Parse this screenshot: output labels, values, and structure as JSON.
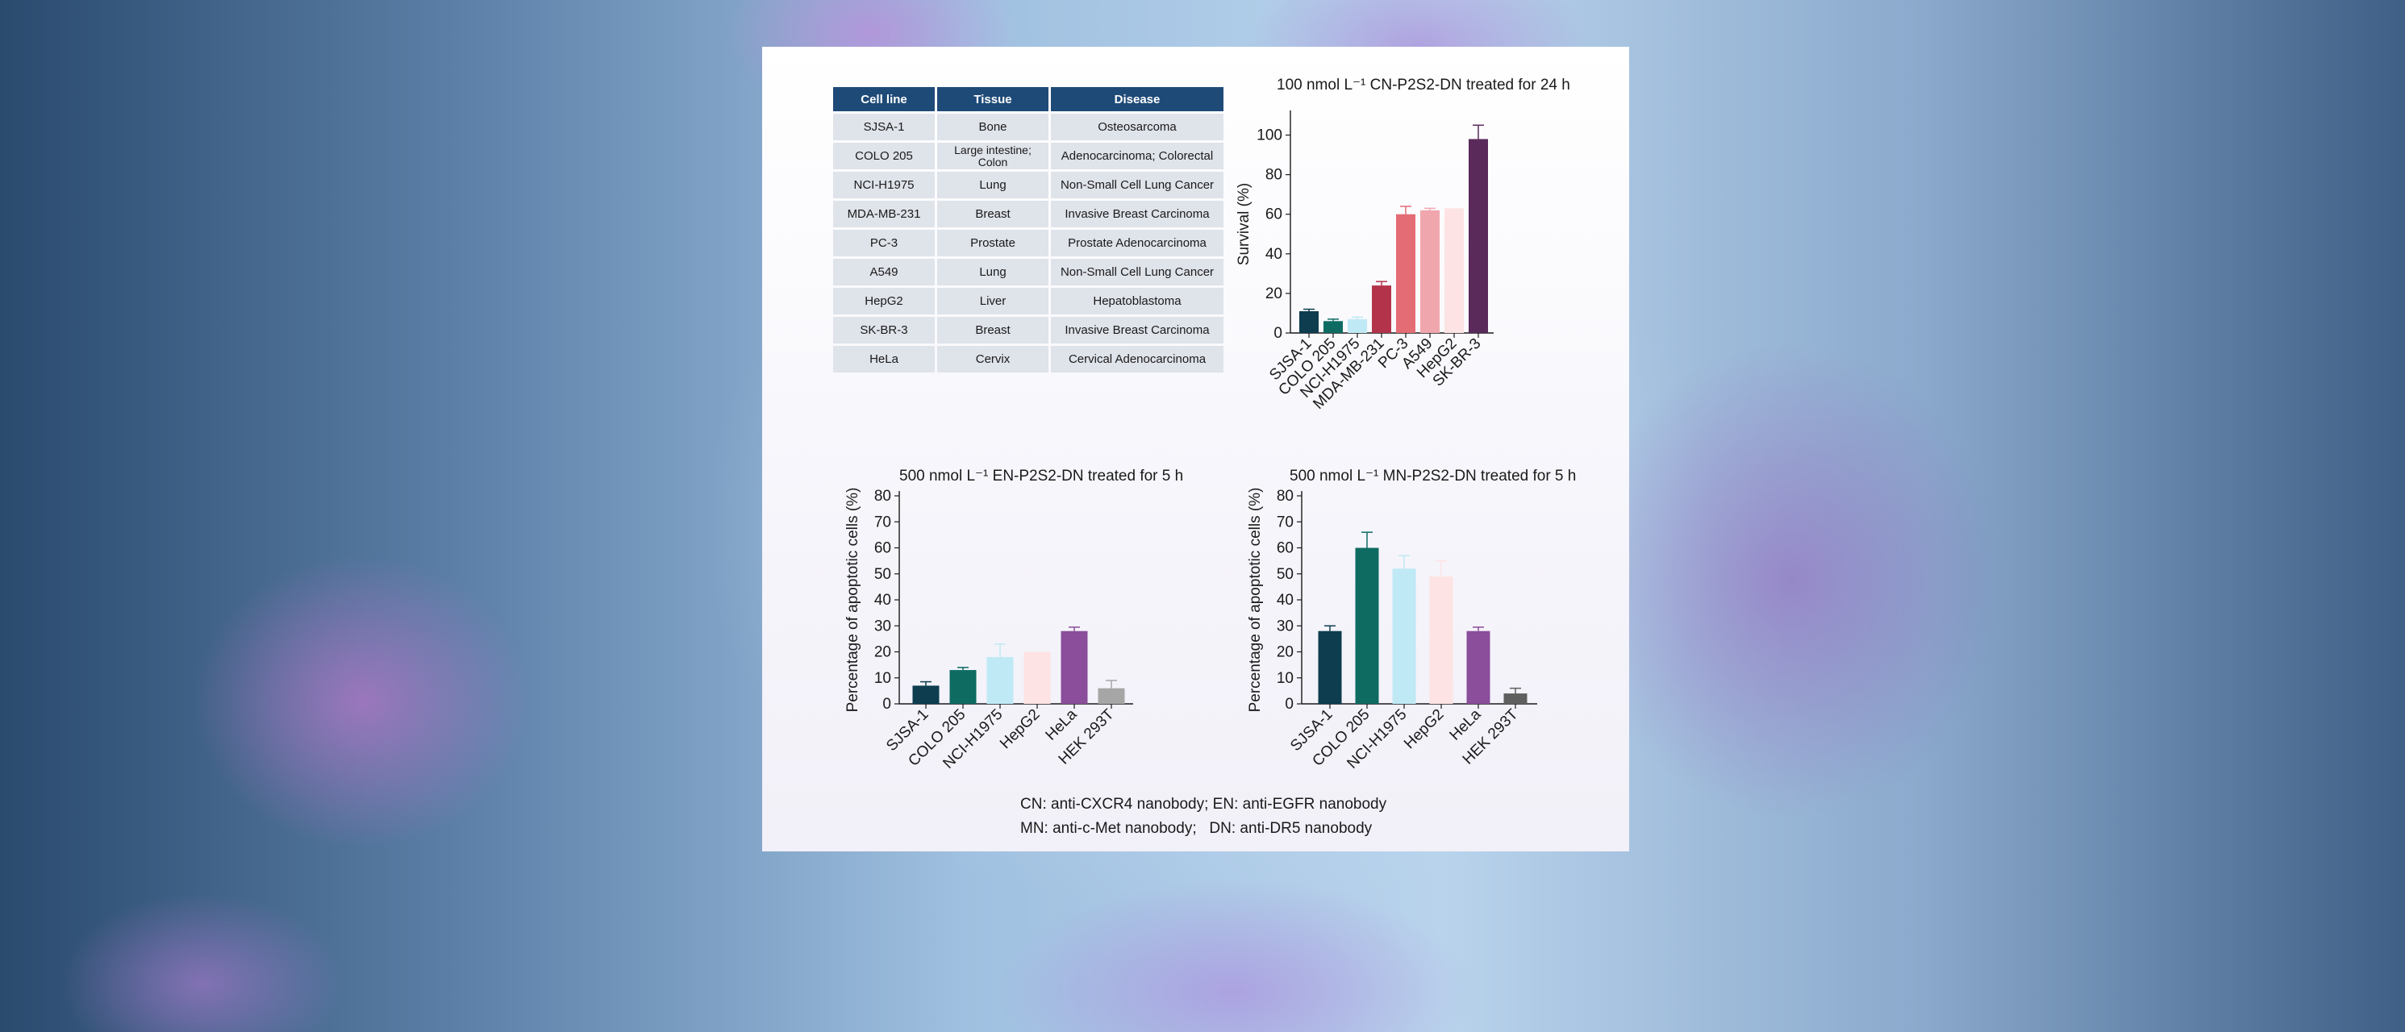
{
  "table": {
    "headers": [
      "Cell line",
      "Tissue",
      "Disease"
    ],
    "rows": [
      [
        "SJSA-1",
        "Bone",
        "Osteosarcoma"
      ],
      [
        "COLO 205",
        "Large intestine; Colon",
        "Adenocarcinoma; Colorectal"
      ],
      [
        "NCI-H1975",
        "Lung",
        "Non-Small Cell Lung Cancer"
      ],
      [
        "MDA-MB-231",
        "Breast",
        "Invasive Breast Carcinoma"
      ],
      [
        "PC-3",
        "Prostate",
        "Prostate Adenocarcinoma"
      ],
      [
        "A549",
        "Lung",
        "Non-Small Cell Lung Cancer"
      ],
      [
        "HepG2",
        "Liver",
        "Hepatoblastoma"
      ],
      [
        "SK-BR-3",
        "Breast",
        "Invasive Breast Carcinoma"
      ],
      [
        "HeLa",
        "Cervix",
        "Cervical Adenocarcinoma"
      ]
    ]
  },
  "chart_data": [
    {
      "type": "bar",
      "title": "100 nmol L⁻¹ CN-P2S2-DN treated for 24 h",
      "xlabel": "",
      "ylabel": "Survival (%)",
      "ylim": [
        0,
        110
      ],
      "yticks": [
        0,
        20,
        40,
        60,
        80,
        100
      ],
      "categories": [
        "SJSA-1",
        "COLO 205",
        "NCI-H1975",
        "MDA-MB-231",
        "PC-3",
        "A549",
        "HepG2",
        "SK-BR-3"
      ],
      "values": [
        11,
        6,
        7,
        24,
        60,
        62,
        63,
        98
      ],
      "errors": [
        1,
        1,
        1,
        2,
        4,
        1,
        0,
        7
      ],
      "colors": [
        "#0d3d4f",
        "#0e6b62",
        "#bfe9f5",
        "#b3344a",
        "#e46c75",
        "#f0a6ad",
        "#fde3e3",
        "#5a2a5a"
      ]
    },
    {
      "type": "bar",
      "title": "500 nmol L⁻¹ EN-P2S2-DN treated for 5 h",
      "xlabel": "",
      "ylabel": "Percentage of apoptotic cells (%)",
      "ylim": [
        0,
        80
      ],
      "yticks": [
        0,
        10,
        20,
        30,
        40,
        50,
        60,
        70,
        80
      ],
      "categories": [
        "SJSA-1",
        "COLO 205",
        "NCI-H1975",
        "HepG2",
        "HeLa",
        "HEK 293T"
      ],
      "values": [
        7,
        13,
        18,
        20,
        28,
        6
      ],
      "errors": [
        1.5,
        1,
        5,
        0,
        1.5,
        3
      ],
      "colors": [
        "#0d3d4f",
        "#0e6b62",
        "#bfe9f5",
        "#fde3e3",
        "#8a4e9a",
        "#a6a6a6"
      ]
    },
    {
      "type": "bar",
      "title": "500 nmol L⁻¹ MN-P2S2-DN treated for 5 h",
      "xlabel": "",
      "ylabel": "Percentage of apoptotic cells (%)",
      "ylim": [
        0,
        80
      ],
      "yticks": [
        0,
        10,
        20,
        30,
        40,
        50,
        60,
        70,
        80
      ],
      "categories": [
        "SJSA-1",
        "COLO 205",
        "NCI-H1975",
        "HepG2",
        "HeLa",
        "HEK 293T"
      ],
      "values": [
        28,
        60,
        52,
        49,
        28,
        4
      ],
      "errors": [
        2,
        6,
        5,
        6,
        1.5,
        2
      ],
      "colors": [
        "#0d3d4f",
        "#0e6b62",
        "#bfe9f5",
        "#fde3e3",
        "#8a4e9a",
        "#5f5f5f"
      ]
    }
  ],
  "notes": {
    "line1": "CN: anti-CXCR4 nanobody; EN: anti-EGFR nanobody",
    "line2": "MN: anti-c-Met nanobody;   DN: anti-DR5 nanobody"
  }
}
